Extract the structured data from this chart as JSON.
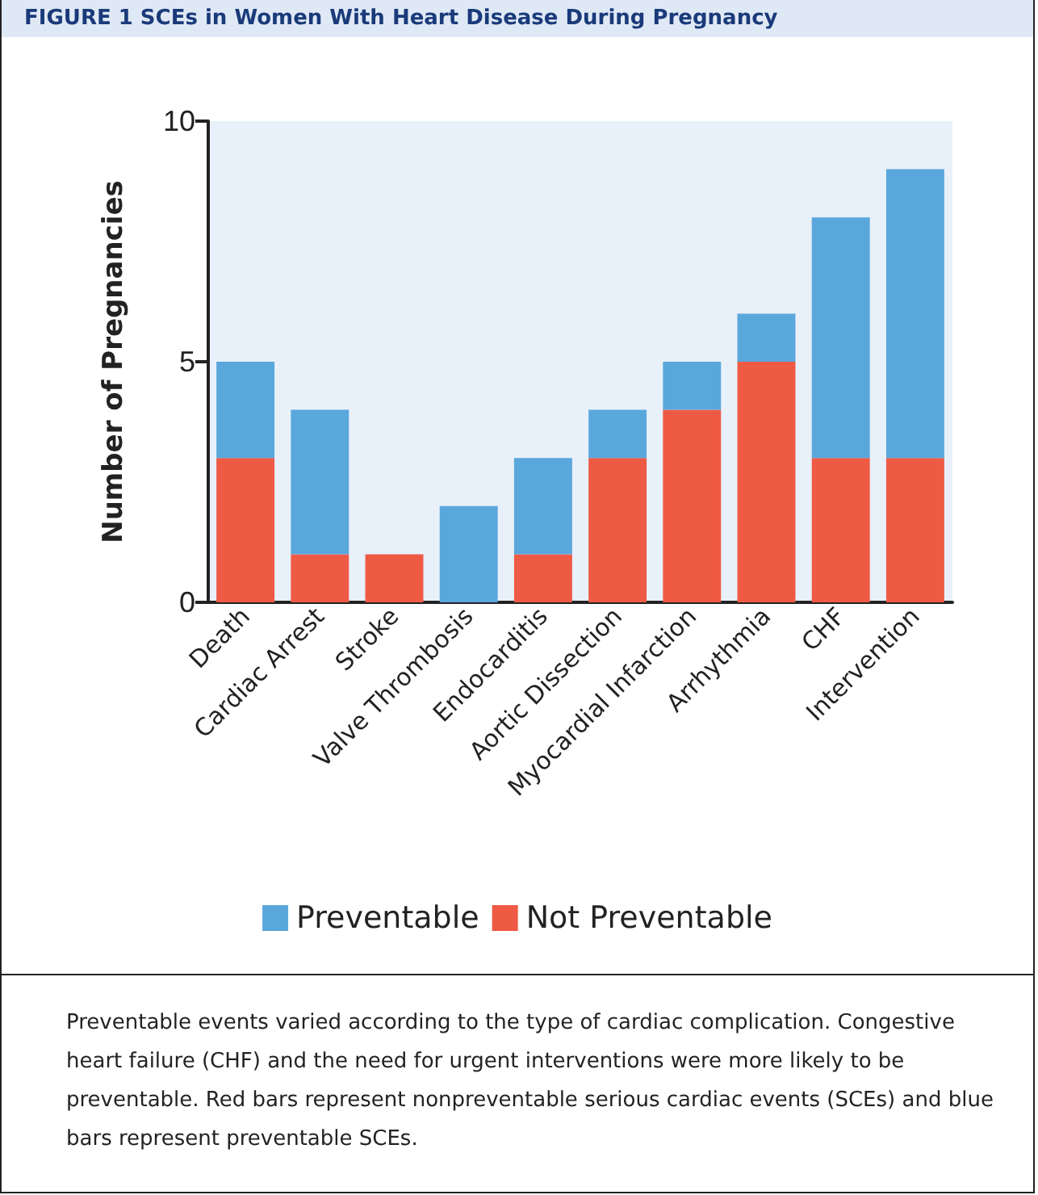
{
  "chart_data": {
    "type": "bar",
    "title": "FIGURE 1 SCEs in Women With Heart Disease During Pregnancy",
    "ylabel": "Number of Pregnancies",
    "categories": [
      "Death",
      "Cardiac Arrest",
      "Stroke",
      "Valve Thrombosis",
      "Endocarditis",
      "Aortic Dissection",
      "Myocardial Infarction",
      "Arrhythmia",
      "CHF",
      "Intervention"
    ],
    "stacked": true,
    "series": [
      {
        "name": "Not Preventable",
        "color": "#ef5a45",
        "values": [
          3,
          1,
          1,
          0,
          1,
          3,
          4,
          5,
          3,
          3
        ]
      },
      {
        "name": "Preventable",
        "color": "#5aa7dc",
        "values": [
          2,
          3,
          0,
          2,
          2,
          1,
          1,
          1,
          5,
          6
        ]
      }
    ],
    "ylim": [
      0,
      10
    ],
    "yticks": [
      0,
      5,
      10
    ],
    "grid": false,
    "legend": "bottom",
    "annotations": [
      "Preventable events varied according to the type of cardiac complication. Congestive heart failure (CHF) and the need for urgent interventions were more likely to be preventable. Red bars represent nonpreventable serious cardiac events (SCEs) and blue bars represent preventable SCEs."
    ]
  }
}
